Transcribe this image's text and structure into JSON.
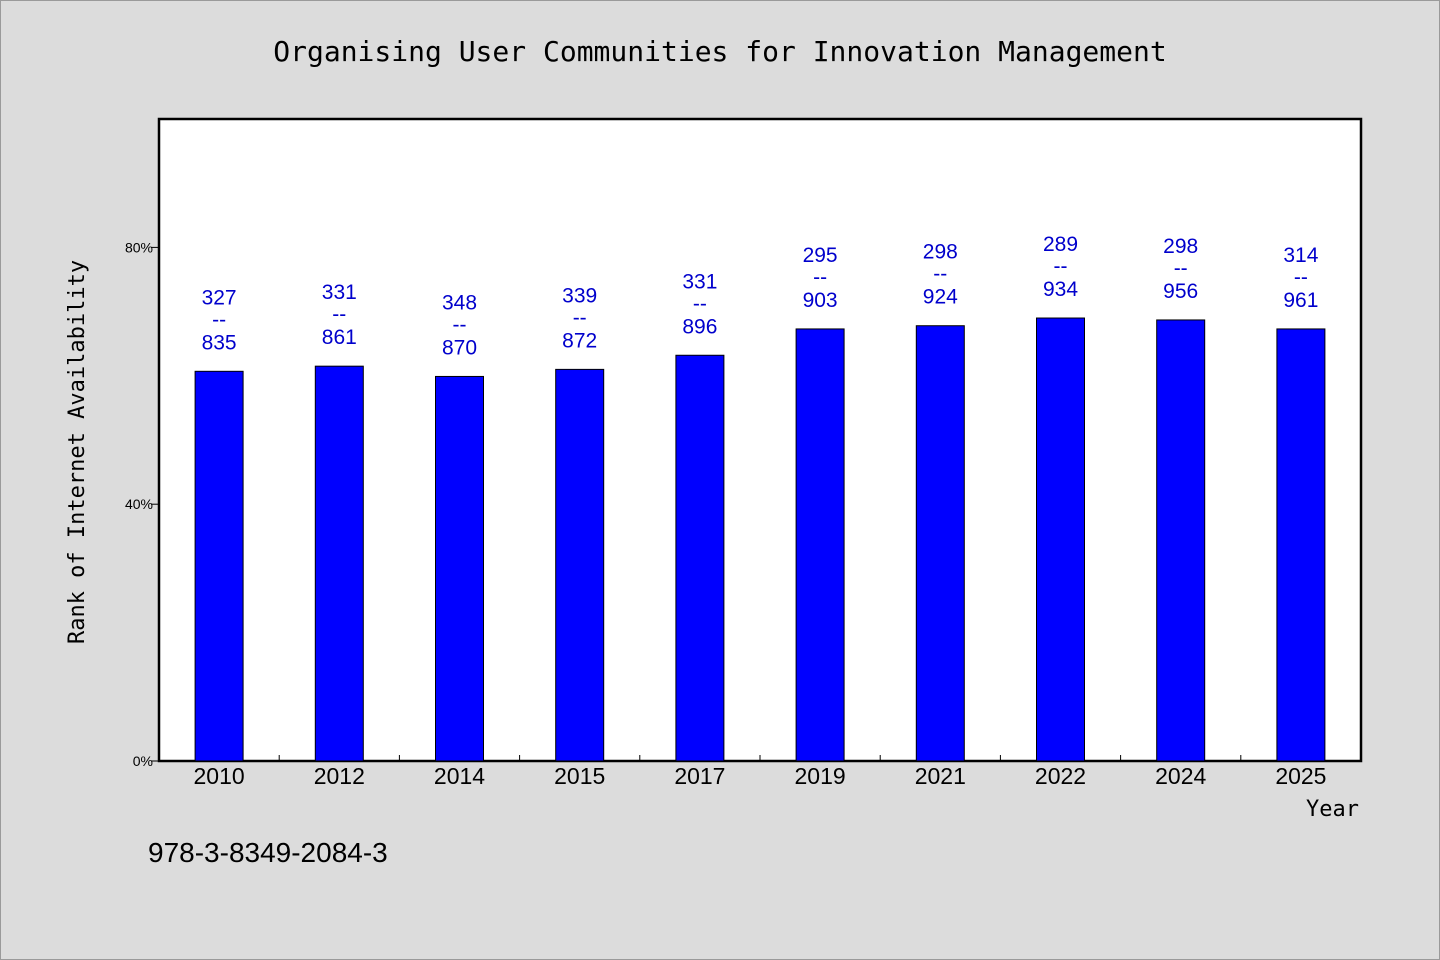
{
  "chart_data": {
    "type": "bar",
    "title": "Organising User Communities for Innovation Management",
    "xlabel": "Year",
    "ylabel": "Rank of Internet Availability",
    "ylim": [
      0,
      1.0
    ],
    "yticks": [
      {
        "value": 0.0,
        "label": "0%"
      },
      {
        "value": 0.4,
        "label": "40%"
      },
      {
        "value": 0.8,
        "label": "80%"
      }
    ],
    "categories": [
      "2010",
      "2012",
      "2014",
      "2015",
      "2017",
      "2019",
      "2021",
      "2022",
      "2024",
      "2025"
    ],
    "values": [
      0.607,
      0.615,
      0.599,
      0.61,
      0.632,
      0.673,
      0.678,
      0.69,
      0.687,
      0.673
    ],
    "data_labels": [
      {
        "top": "327",
        "sep": "--",
        "bottom": "835"
      },
      {
        "top": "331",
        "sep": "--",
        "bottom": "861"
      },
      {
        "top": "348",
        "sep": "--",
        "bottom": "870"
      },
      {
        "top": "339",
        "sep": "--",
        "bottom": "872"
      },
      {
        "top": "331",
        "sep": "--",
        "bottom": "896"
      },
      {
        "top": "295",
        "sep": "--",
        "bottom": "903"
      },
      {
        "top": "298",
        "sep": "--",
        "bottom": "924"
      },
      {
        "top": "289",
        "sep": "--",
        "bottom": "934"
      },
      {
        "top": "298",
        "sep": "--",
        "bottom": "956"
      },
      {
        "top": "314",
        "sep": "--",
        "bottom": "961"
      }
    ],
    "bar_color": "#0000ff",
    "label_color": "#0000cc",
    "grid": false,
    "legend": "none"
  },
  "footer": {
    "isbn": "978-3-8349-2084-3"
  },
  "colors": {
    "background": "#dcdcdc",
    "plot_background": "#ffffff"
  }
}
